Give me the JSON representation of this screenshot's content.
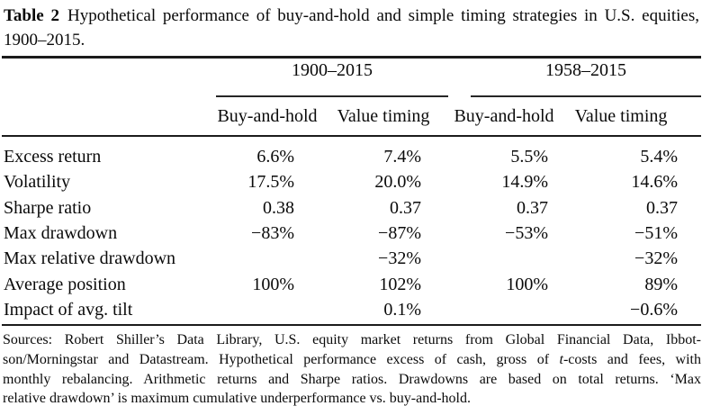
{
  "page": {
    "background": "#ffffff",
    "text_color": "#0a0a0a",
    "rule_color": "#1b1b1b"
  },
  "title": {
    "number": "Table 2",
    "text": "Hypothetical performance of buy-and-hold and simple timing strategies in U.S. equities, 1900–2015."
  },
  "table": {
    "groups": [
      {
        "label": "1900–2015"
      },
      {
        "label": "1958–2015"
      }
    ],
    "col_headers": [
      "Buy-and-hold",
      "Value timing",
      "Buy-and-hold",
      "Value timing"
    ],
    "rows": [
      {
        "label": "Excess return",
        "values": [
          "6.6%",
          "7.4%",
          "5.5%",
          "5.4%"
        ]
      },
      {
        "label": "Volatility",
        "values": [
          "17.5%",
          "20.0%",
          "14.9%",
          "14.6%"
        ]
      },
      {
        "label": "Sharpe ratio",
        "values": [
          "0.38",
          "0.37",
          "0.37",
          "0.37"
        ]
      },
      {
        "label": "Max drawdown",
        "values": [
          "−83%",
          "−87%",
          "−53%",
          "−51%"
        ]
      },
      {
        "label": "Max relative drawdown",
        "values": [
          "",
          "−32%",
          "",
          "−32%"
        ]
      },
      {
        "label": "Average position",
        "values": [
          "100%",
          "102%",
          "100%",
          "89%"
        ]
      },
      {
        "label": "Impact of avg. tilt",
        "values": [
          "",
          "0.1%",
          "",
          "−0.6%"
        ]
      }
    ]
  },
  "notes": {
    "line1": "Sources: Robert Shiller’s Data Library, U.S. equity market returns from Global Financial Data, Ibbot-",
    "line2_pre": "son/Morningstar and Datastream. Hypothetical performance excess of cash, gross of ",
    "line2_italic": "t",
    "line2_post": "-costs and fees, with",
    "line3": "monthly rebalancing. Arithmetic returns and Sharpe ratios. Drawdowns are based on total returns. ‘Max",
    "line4": "relative drawdown’ is maximum cumulative underperformance vs. buy-and-hold."
  }
}
